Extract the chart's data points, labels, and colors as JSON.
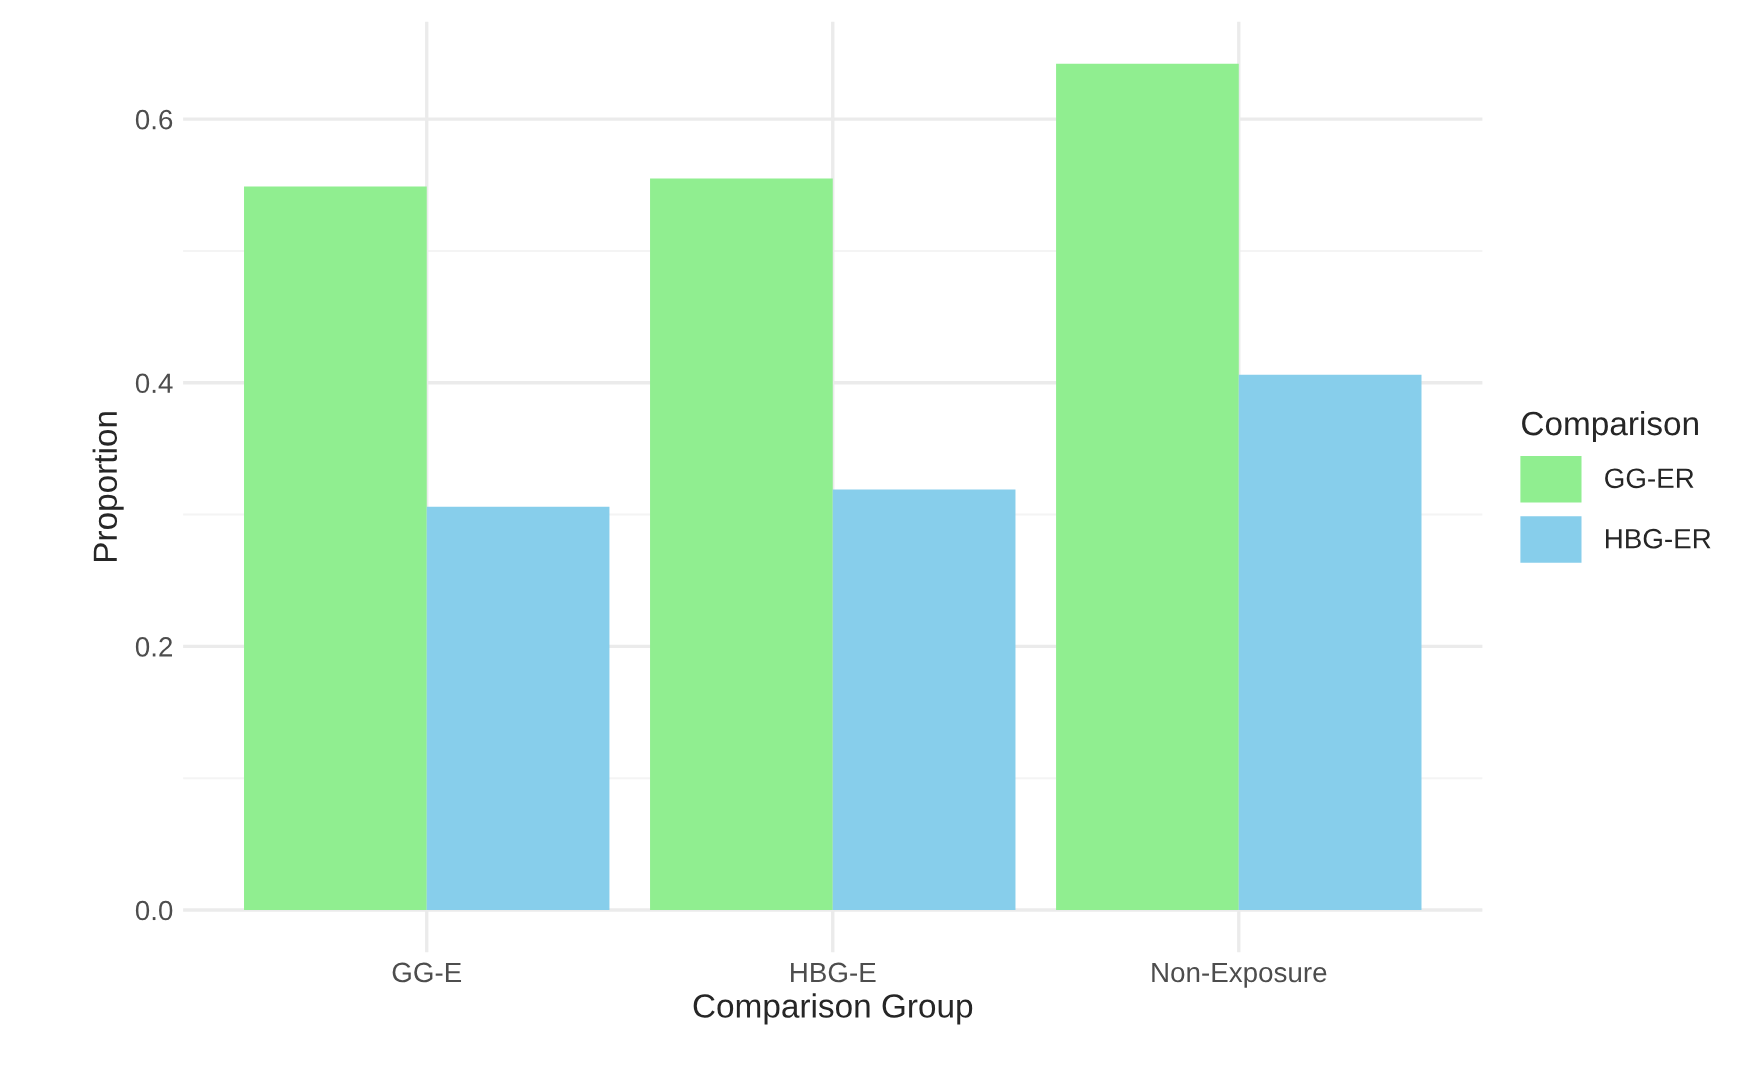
{
  "chart_data": {
    "type": "bar",
    "xlabel": "Comparison Group",
    "ylabel": "Proportion",
    "legend_title": "Comparison",
    "categories": [
      "GG-E",
      "HBG-E",
      "Non-Exposure"
    ],
    "series": [
      {
        "name": "GG-ER",
        "color": "#90ee90",
        "values": [
          0.549,
          0.555,
          0.642
        ]
      },
      {
        "name": "HBG-ER",
        "color": "#87ceeb",
        "values": [
          0.306,
          0.319,
          0.406
        ]
      }
    ],
    "ylim": [
      -0.032,
      0.674
    ],
    "yticks": [
      {
        "value": 0,
        "label": "0.0"
      },
      {
        "value": 0.1,
        "label": null
      },
      0.2,
      {
        "value": 0.3,
        "label": null
      },
      0.4,
      {
        "value": 0.5,
        "label": null
      },
      0.6
    ],
    "grid": true,
    "legend": "right"
  }
}
